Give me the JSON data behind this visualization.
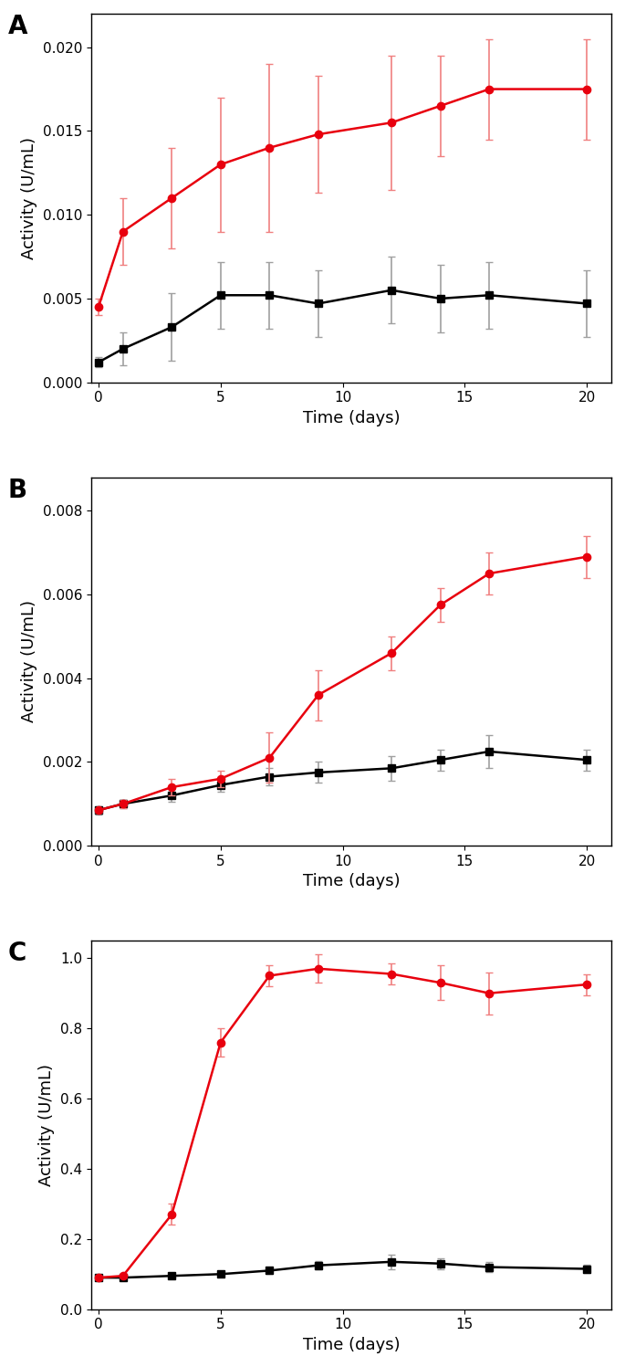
{
  "panel_A": {
    "label": "A",
    "x": [
      0,
      1,
      3,
      5,
      7,
      9,
      12,
      14,
      16,
      20
    ],
    "red_y": [
      0.0045,
      0.009,
      0.011,
      0.013,
      0.014,
      0.0148,
      0.0155,
      0.0165,
      0.0175,
      0.0175
    ],
    "red_err": [
      0.0005,
      0.002,
      0.003,
      0.004,
      0.005,
      0.0035,
      0.004,
      0.003,
      0.003,
      0.003
    ],
    "black_y": [
      0.0012,
      0.002,
      0.0033,
      0.0052,
      0.0052,
      0.0047,
      0.0055,
      0.005,
      0.0052,
      0.0047
    ],
    "black_err": [
      0.0003,
      0.001,
      0.002,
      0.002,
      0.002,
      0.002,
      0.002,
      0.002,
      0.002,
      0.002
    ],
    "ylabel": "Activity (U/mL)",
    "xlabel": "Time (days)",
    "ylim": [
      0.0,
      0.022
    ],
    "yticks": [
      0.0,
      0.005,
      0.01,
      0.015,
      0.02
    ],
    "ytick_labels": [
      "0.000",
      "0.005",
      "0.010",
      "0.015",
      "0.020"
    ]
  },
  "panel_B": {
    "label": "B",
    "x": [
      0,
      1,
      3,
      5,
      7,
      9,
      12,
      14,
      16,
      20
    ],
    "red_y": [
      0.00085,
      0.001,
      0.0014,
      0.0016,
      0.0021,
      0.0036,
      0.0046,
      0.00575,
      0.0065,
      0.0069
    ],
    "red_err": [
      5e-05,
      0.0001,
      0.0002,
      0.0002,
      0.0006,
      0.0006,
      0.0004,
      0.0004,
      0.0005,
      0.0005
    ],
    "black_y": [
      0.00085,
      0.001,
      0.0012,
      0.00145,
      0.00165,
      0.00175,
      0.00185,
      0.00205,
      0.00225,
      0.00205
    ],
    "black_err": [
      0.0001,
      0.0001,
      0.00015,
      0.00015,
      0.0002,
      0.00025,
      0.0003,
      0.00025,
      0.0004,
      0.00025
    ],
    "ylabel": "Activity (U/mL)",
    "xlabel": "Time (days)",
    "ylim": [
      0.0,
      0.0088
    ],
    "yticks": [
      0.0,
      0.002,
      0.004,
      0.006,
      0.008
    ],
    "ytick_labels": [
      "0.000",
      "0.002",
      "0.004",
      "0.006",
      "0.008"
    ]
  },
  "panel_C": {
    "label": "C",
    "x": [
      0,
      1,
      3,
      5,
      7,
      9,
      12,
      14,
      16,
      20
    ],
    "red_y": [
      0.09,
      0.095,
      0.27,
      0.76,
      0.95,
      0.97,
      0.955,
      0.93,
      0.9,
      0.925
    ],
    "red_err": [
      0.005,
      0.005,
      0.03,
      0.04,
      0.03,
      0.04,
      0.03,
      0.05,
      0.06,
      0.03
    ],
    "black_y": [
      0.09,
      0.09,
      0.095,
      0.1,
      0.11,
      0.125,
      0.135,
      0.13,
      0.12,
      0.115
    ],
    "black_err": [
      0.005,
      0.005,
      0.008,
      0.008,
      0.01,
      0.012,
      0.02,
      0.015,
      0.015,
      0.012
    ],
    "ylabel": "Activity (U/mL)",
    "xlabel": "Time (days)",
    "ylim": [
      0.0,
      1.05
    ],
    "yticks": [
      0.0,
      0.2,
      0.4,
      0.6,
      0.8,
      1.0
    ],
    "ytick_labels": [
      "0.0",
      "0.2",
      "0.4",
      "0.6",
      "0.8",
      "1.0"
    ]
  },
  "xticks": [
    0,
    5,
    10,
    15,
    20
  ],
  "xtick_labels": [
    "0",
    "5",
    "10",
    "15",
    "20"
  ],
  "red_color": "#E8000E",
  "black_color": "#000000",
  "gray_err_color": "#A0A0A0",
  "red_err_color": "#F08080",
  "bg_color": "#ffffff",
  "label_fontsize": 20,
  "tick_fontsize": 11,
  "axis_label_fontsize": 13,
  "linewidth": 1.8,
  "markersize": 6,
  "capsize": 3,
  "elinewidth": 1.2
}
